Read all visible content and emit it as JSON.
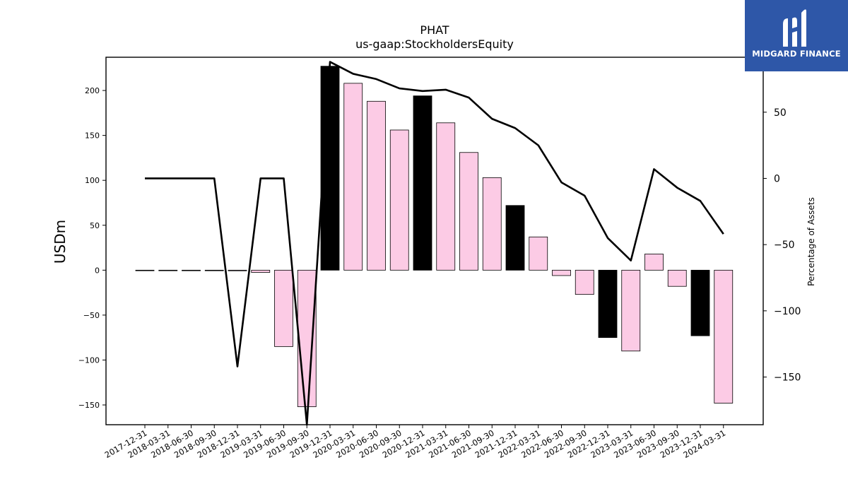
{
  "chart_data": {
    "type": "bar",
    "title": "PHAT",
    "subtitle": "us-gaap:StockholdersEquity",
    "ylabel": "USDm",
    "y2label": "Percentage of Assets",
    "ylim": [
      -172,
      237
    ],
    "y2lim": [
      -186,
      91.5
    ],
    "yticks": [
      -150,
      -100,
      -50,
      0,
      50,
      100,
      150,
      200
    ],
    "y2ticks": [
      -150,
      -100,
      -50,
      0,
      50
    ],
    "categories": [
      "2017-12-31",
      "2018-03-31",
      "2018-06-30",
      "2018-09-30",
      "2018-12-31",
      "2019-03-31",
      "2019-06-30",
      "2019-09-30",
      "2019-12-31",
      "2020-03-31",
      "2020-06-30",
      "2020-09-30",
      "2020-12-31",
      "2021-03-31",
      "2021-06-30",
      "2021-09-30",
      "2021-12-31",
      "2022-03-31",
      "2022-06-30",
      "2022-09-30",
      "2022-12-31",
      "2023-03-31",
      "2023-06-30",
      "2023-09-30",
      "2023-12-31",
      "2024-03-31"
    ],
    "series": [
      {
        "kind": "bar",
        "values": [
          0,
          0,
          0,
          -0.5,
          -0.7,
          -2.5,
          -85,
          -152,
          227,
          208,
          188,
          156,
          194,
          164,
          131,
          103,
          72,
          37,
          -6,
          -27,
          -75,
          -90,
          18,
          -18,
          -73,
          -148
        ],
        "highlight": [
          false,
          false,
          false,
          false,
          false,
          false,
          false,
          false,
          true,
          false,
          false,
          false,
          true,
          false,
          false,
          false,
          true,
          false,
          false,
          false,
          true,
          false,
          false,
          false,
          true,
          false
        ]
      },
      {
        "kind": "line",
        "axis": "right",
        "values": [
          0,
          0,
          0,
          0,
          -142,
          0,
          0,
          -186,
          88,
          79,
          75,
          68,
          66,
          67,
          61,
          45,
          38,
          25,
          -3,
          -13,
          -45,
          -62,
          7,
          -7,
          -17,
          -42
        ]
      }
    ],
    "colors": {
      "bar": "#fccbe5",
      "bar_highlight": "#000000",
      "line": "#000000"
    },
    "grid": false
  },
  "logo": {
    "text": "MIDGARD FINANCE",
    "background": "#2e57a8"
  }
}
